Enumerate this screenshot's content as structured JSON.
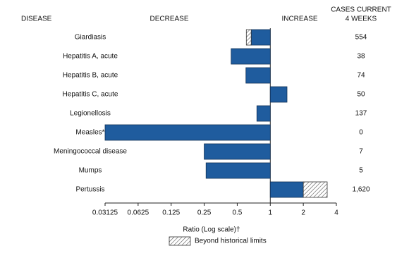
{
  "chart_data": {
    "type": "bar",
    "headers": {
      "disease": "DISEASE",
      "decrease": "DECREASE",
      "increase": "INCREASE",
      "cases": [
        "CASES CURRENT",
        "4 WEEKS"
      ]
    },
    "categories": [
      "Giardiasis",
      "Hepatitis A, acute",
      "Hepatitis B, acute",
      "Hepatitis C, acute",
      "Legionellosis",
      "Measles*",
      "Meningococcal disease",
      "Mumps",
      "Pertussis"
    ],
    "values": [
      0.605,
      0.44,
      0.6,
      1.42,
      0.755,
      0.03125,
      0.25,
      0.26,
      3.3
    ],
    "limits": [
      0.67,
      null,
      null,
      null,
      null,
      null,
      null,
      null,
      2
    ],
    "cases": [
      "554",
      "38",
      "74",
      "50",
      "137",
      "0",
      "7",
      "5",
      "1,620"
    ],
    "color": "#1f5c9e",
    "xlim": [
      0.03125,
      4
    ],
    "log": true,
    "xticks": [
      0.03125,
      0.0625,
      0.125,
      0.25,
      0.5,
      1,
      2,
      4
    ],
    "xlabel": "Ratio (Log scale)†",
    "legend": "Beyond historical limits"
  }
}
